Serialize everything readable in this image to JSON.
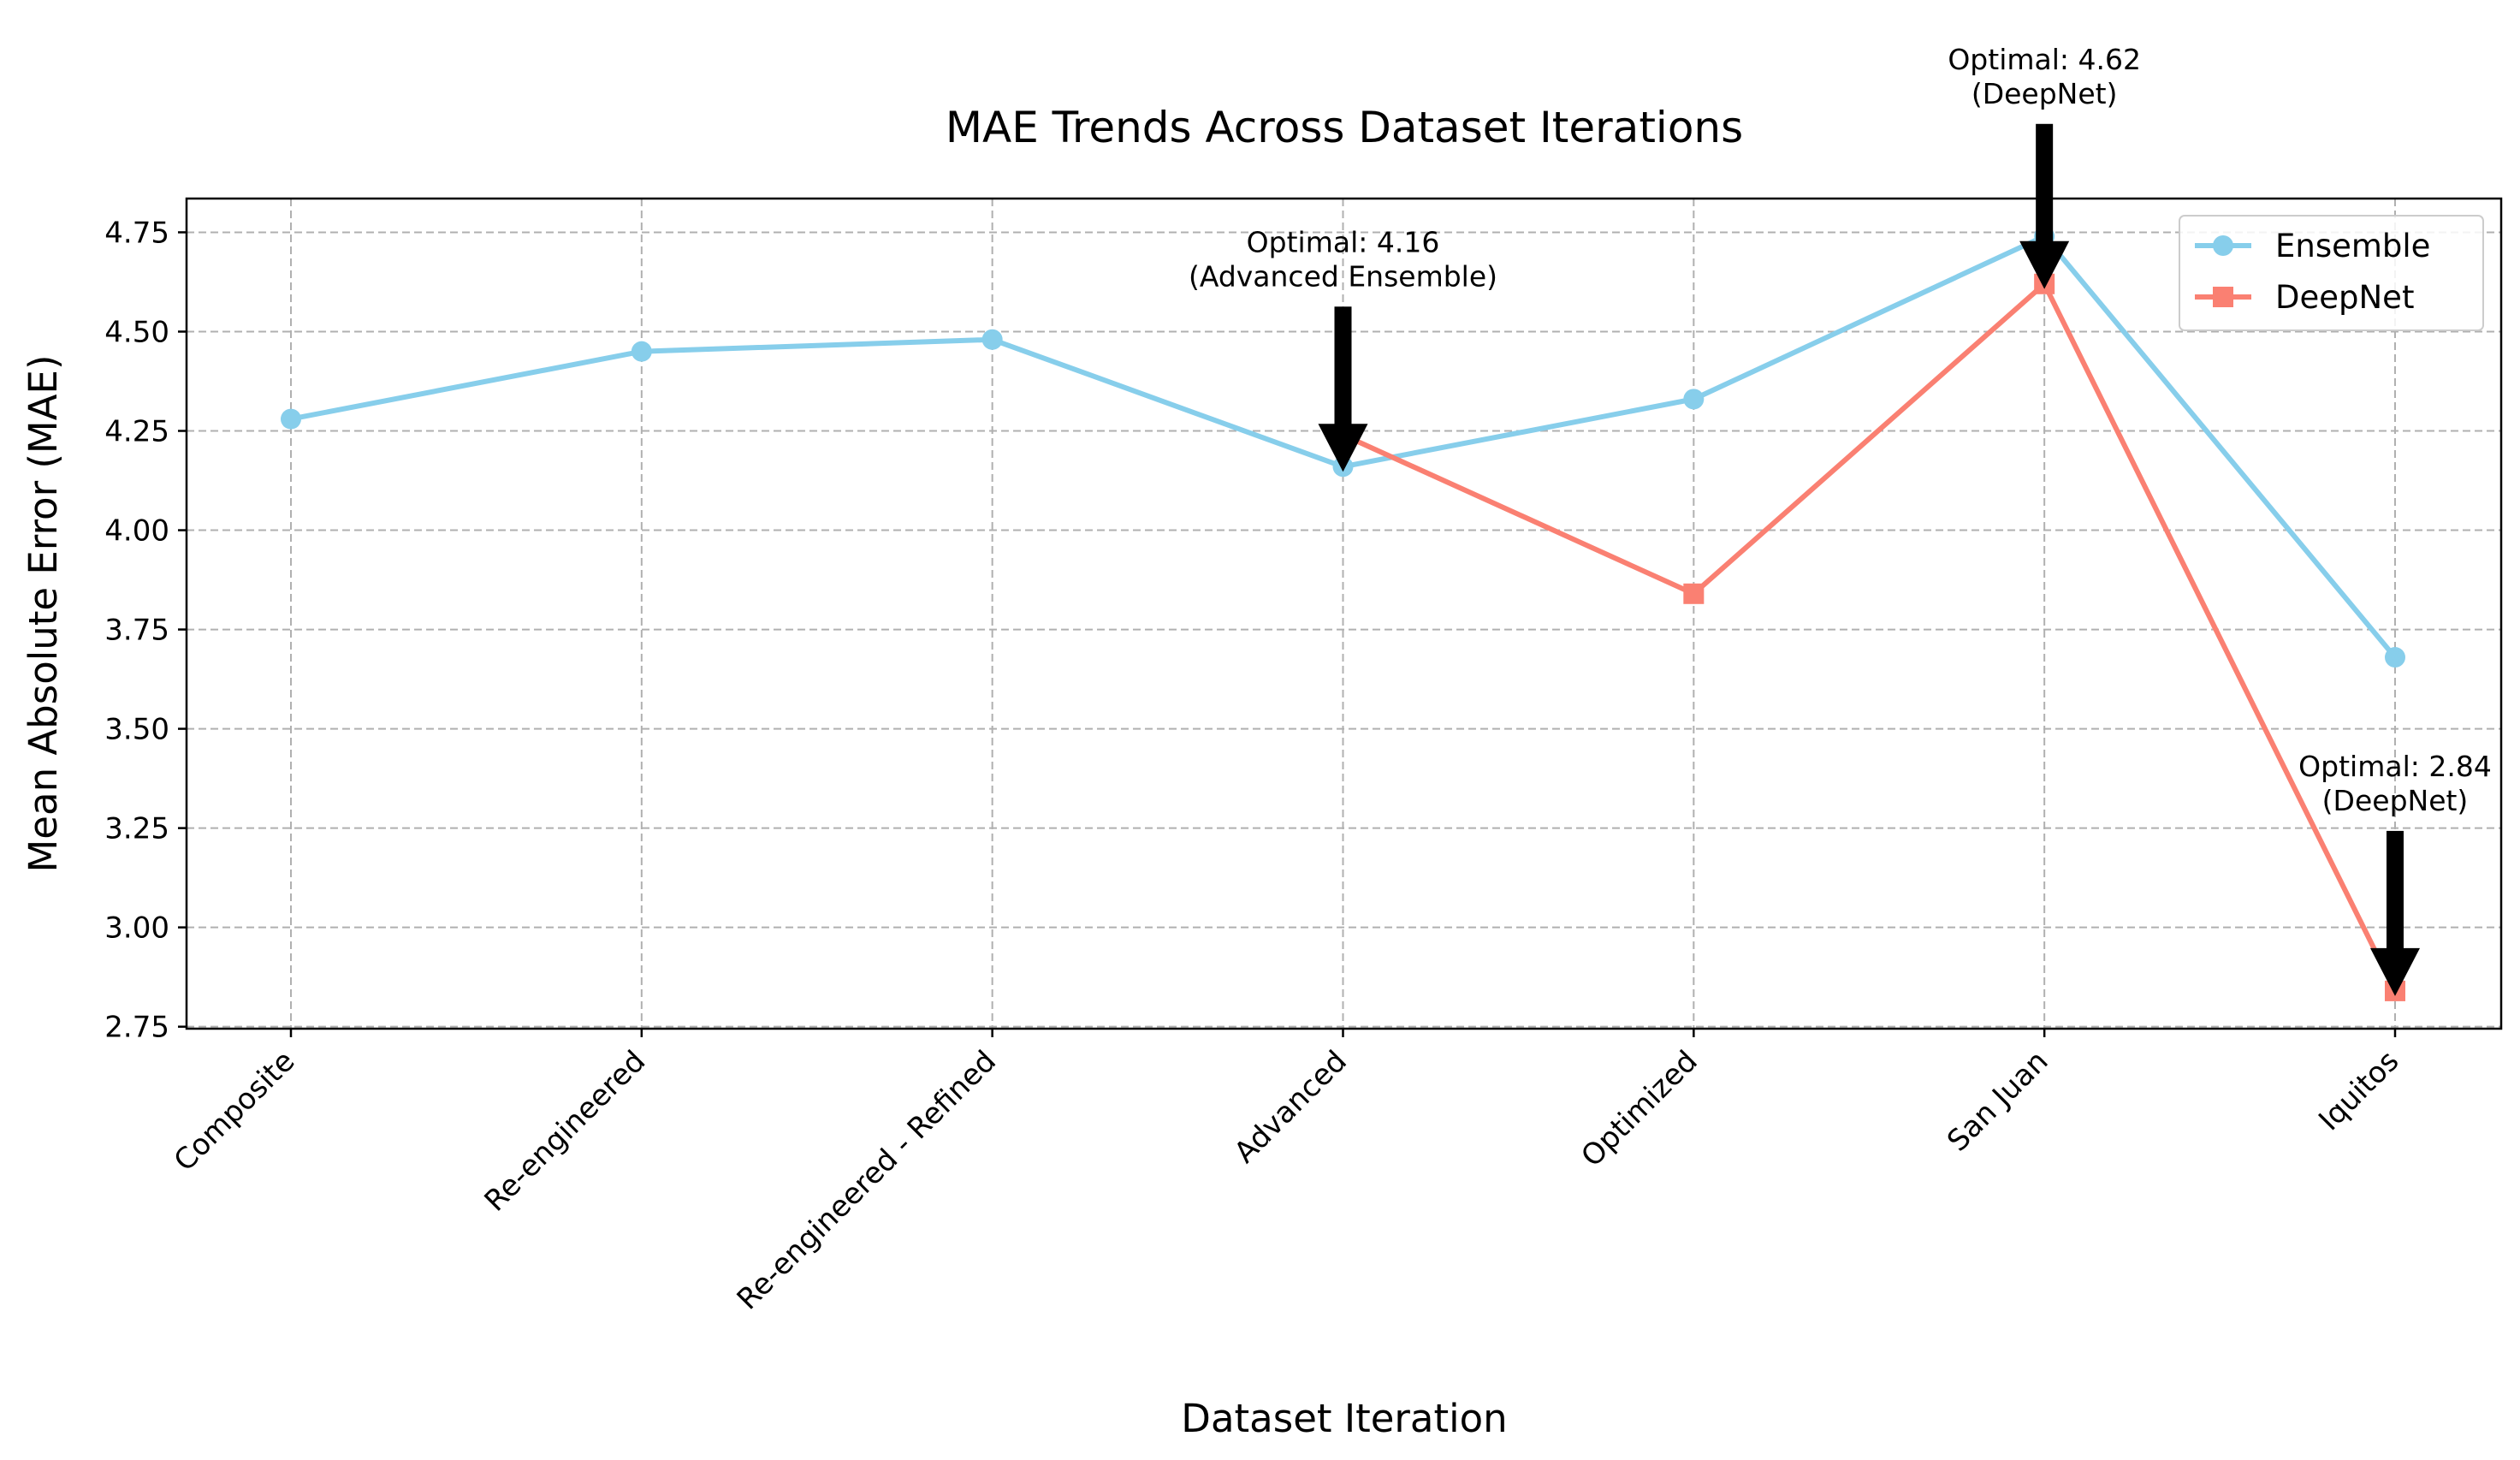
{
  "chart_data": {
    "type": "line",
    "title": "MAE Trends Across Dataset Iterations",
    "xlabel": "Dataset Iteration",
    "ylabel": "Mean Absolute Error (MAE)",
    "categories": [
      "Composite",
      "Re-engineered",
      "Re-engineered - Refined",
      "Advanced",
      "Optimized",
      "San Juan",
      "Iquitos"
    ],
    "ylim": [
      2.745,
      4.835
    ],
    "yticks": [
      "2.75",
      "3.00",
      "3.25",
      "3.50",
      "3.75",
      "4.00",
      "4.25",
      "4.50",
      "4.75"
    ],
    "grid": true,
    "legend_position": "top-right",
    "series": [
      {
        "name": "Ensemble",
        "color": "#87ceeb",
        "marker": "circle",
        "values": [
          4.28,
          4.45,
          4.48,
          4.16,
          4.33,
          4.74,
          3.68
        ]
      },
      {
        "name": "DeepNet",
        "color": "#fa8072",
        "marker": "square",
        "values": [
          null,
          null,
          null,
          4.24,
          3.84,
          4.62,
          2.84
        ]
      }
    ],
    "annotations": [
      {
        "category": "Advanced",
        "value": 4.16,
        "line1": "Optimal: 4.16",
        "line2": "(Advanced Ensemble)"
      },
      {
        "category": "San Juan",
        "value": 4.62,
        "line1": "Optimal: 4.62",
        "line2": "(DeepNet)"
      },
      {
        "category": "Iquitos",
        "value": 2.84,
        "line1": "Optimal: 2.84",
        "line2": "(DeepNet)"
      }
    ]
  }
}
